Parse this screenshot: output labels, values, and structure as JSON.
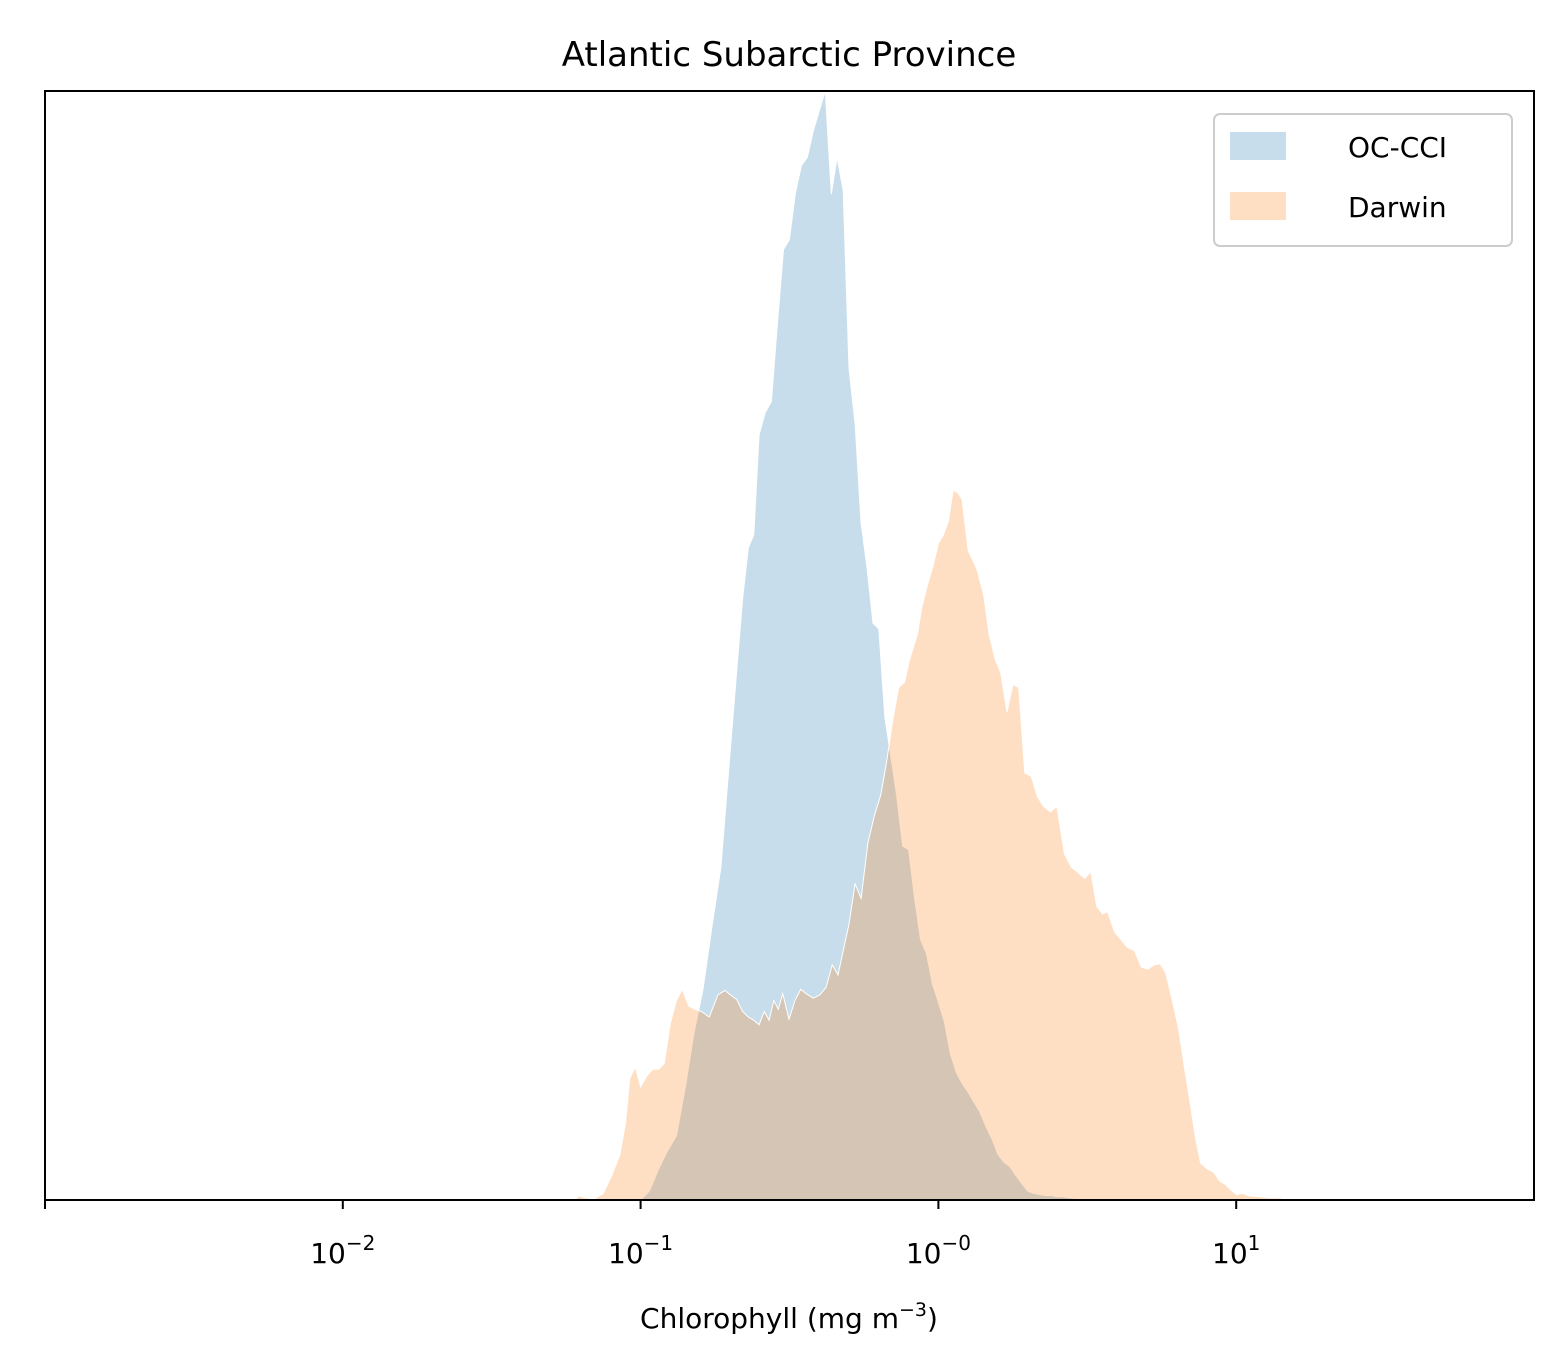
{
  "chart_data": {
    "type": "area",
    "title": "Atlantic Subarctic Province",
    "xlabel": {
      "main": "Chlorophyll  (mg m",
      "sup": "−3",
      "tail": ")"
    },
    "ylabel": "",
    "xscale": "log",
    "xlim": [
      0.001,
      100
    ],
    "ylim": [
      0,
      1.0
    ],
    "yticks_shown": false,
    "grid": false,
    "legend_position": "upper right",
    "x_ticks": [
      {
        "value": 0.01,
        "base": "10",
        "exp": "−2"
      },
      {
        "value": 0.1,
        "base": "10",
        "exp": "−1"
      },
      {
        "value": 1,
        "base": "10",
        "exp": "−0"
      },
      {
        "value": 10,
        "base": "10",
        "exp": "1"
      }
    ],
    "series": [
      {
        "name": "OC-CCI",
        "color": "#1f77b4",
        "alpha": 0.25,
        "points": [
          [
            0.1,
            0.0
          ],
          [
            0.107,
            0.008
          ],
          [
            0.115,
            0.028
          ],
          [
            0.123,
            0.044
          ],
          [
            0.132,
            0.058
          ],
          [
            0.141,
            0.1
          ],
          [
            0.151,
            0.15
          ],
          [
            0.162,
            0.19
          ],
          [
            0.174,
            0.248
          ],
          [
            0.186,
            0.3
          ],
          [
            0.2,
            0.405
          ],
          [
            0.209,
            0.468
          ],
          [
            0.22,
            0.542
          ],
          [
            0.23,
            0.588
          ],
          [
            0.24,
            0.6
          ],
          [
            0.25,
            0.69
          ],
          [
            0.262,
            0.71
          ],
          [
            0.275,
            0.72
          ],
          [
            0.288,
            0.79
          ],
          [
            0.302,
            0.857
          ],
          [
            0.316,
            0.866
          ],
          [
            0.331,
            0.908
          ],
          [
            0.347,
            0.933
          ],
          [
            0.363,
            0.94
          ],
          [
            0.38,
            0.964
          ],
          [
            0.398,
            0.982
          ],
          [
            0.417,
            1.0
          ],
          [
            0.437,
            0.907
          ],
          [
            0.457,
            0.94
          ],
          [
            0.479,
            0.91
          ],
          [
            0.501,
            0.75
          ],
          [
            0.525,
            0.7
          ],
          [
            0.55,
            0.61
          ],
          [
            0.575,
            0.572
          ],
          [
            0.603,
            0.52
          ],
          [
            0.631,
            0.515
          ],
          [
            0.661,
            0.435
          ],
          [
            0.692,
            0.4
          ],
          [
            0.724,
            0.365
          ],
          [
            0.759,
            0.319
          ],
          [
            0.794,
            0.316
          ],
          [
            0.832,
            0.272
          ],
          [
            0.871,
            0.235
          ],
          [
            0.912,
            0.222
          ],
          [
            0.955,
            0.195
          ],
          [
            1.0,
            0.178
          ],
          [
            1.047,
            0.161
          ],
          [
            1.096,
            0.132
          ],
          [
            1.148,
            0.115
          ],
          [
            1.202,
            0.105
          ],
          [
            1.259,
            0.097
          ],
          [
            1.318,
            0.088
          ],
          [
            1.38,
            0.079
          ],
          [
            1.445,
            0.066
          ],
          [
            1.514,
            0.055
          ],
          [
            1.585,
            0.041
          ],
          [
            1.66,
            0.034
          ],
          [
            1.738,
            0.03
          ],
          [
            1.82,
            0.022
          ],
          [
            1.905,
            0.015
          ],
          [
            1.995,
            0.008
          ],
          [
            2.089,
            0.006
          ],
          [
            2.188,
            0.005
          ],
          [
            2.291,
            0.004
          ],
          [
            2.399,
            0.004
          ],
          [
            2.512,
            0.003
          ],
          [
            2.63,
            0.003
          ],
          [
            2.754,
            0.002
          ],
          [
            3.0,
            0.001
          ],
          [
            3.5,
            0.0
          ]
        ]
      },
      {
        "name": "Darwin",
        "color": "#ff7f0e",
        "alpha": 0.25,
        "points": [
          [
            0.06,
            0.0
          ],
          [
            0.062,
            0.004
          ],
          [
            0.065,
            0.002
          ],
          [
            0.07,
            0.001
          ],
          [
            0.075,
            0.006
          ],
          [
            0.08,
            0.022
          ],
          [
            0.085,
            0.04
          ],
          [
            0.089,
            0.069
          ],
          [
            0.092,
            0.11
          ],
          [
            0.096,
            0.12
          ],
          [
            0.1,
            0.102
          ],
          [
            0.105,
            0.112
          ],
          [
            0.11,
            0.118
          ],
          [
            0.115,
            0.118
          ],
          [
            0.12,
            0.123
          ],
          [
            0.126,
            0.16
          ],
          [
            0.132,
            0.18
          ],
          [
            0.138,
            0.19
          ],
          [
            0.145,
            0.175
          ],
          [
            0.152,
            0.172
          ],
          [
            0.16,
            0.17
          ],
          [
            0.17,
            0.165
          ],
          [
            0.182,
            0.185
          ],
          [
            0.192,
            0.189
          ],
          [
            0.2,
            0.185
          ],
          [
            0.21,
            0.181
          ],
          [
            0.22,
            0.17
          ],
          [
            0.23,
            0.165
          ],
          [
            0.24,
            0.162
          ],
          [
            0.25,
            0.158
          ],
          [
            0.26,
            0.17
          ],
          [
            0.27,
            0.162
          ],
          [
            0.28,
            0.18
          ],
          [
            0.29,
            0.172
          ],
          [
            0.3,
            0.186
          ],
          [
            0.315,
            0.163
          ],
          [
            0.33,
            0.18
          ],
          [
            0.345,
            0.19
          ],
          [
            0.36,
            0.186
          ],
          [
            0.38,
            0.182
          ],
          [
            0.4,
            0.185
          ],
          [
            0.42,
            0.192
          ],
          [
            0.44,
            0.212
          ],
          [
            0.46,
            0.203
          ],
          [
            0.48,
            0.226
          ],
          [
            0.5,
            0.248
          ],
          [
            0.525,
            0.285
          ],
          [
            0.55,
            0.272
          ],
          [
            0.58,
            0.322
          ],
          [
            0.61,
            0.347
          ],
          [
            0.64,
            0.365
          ],
          [
            0.67,
            0.395
          ],
          [
            0.7,
            0.43
          ],
          [
            0.735,
            0.462
          ],
          [
            0.77,
            0.467
          ],
          [
            0.8,
            0.487
          ],
          [
            0.85,
            0.51
          ],
          [
            0.88,
            0.535
          ],
          [
            0.92,
            0.555
          ],
          [
            0.96,
            0.572
          ],
          [
            1.0,
            0.592
          ],
          [
            1.04,
            0.6
          ],
          [
            1.08,
            0.612
          ],
          [
            1.12,
            0.64
          ],
          [
            1.16,
            0.638
          ],
          [
            1.2,
            0.632
          ],
          [
            1.26,
            0.585
          ],
          [
            1.3,
            0.578
          ],
          [
            1.35,
            0.568
          ],
          [
            1.42,
            0.545
          ],
          [
            1.48,
            0.51
          ],
          [
            1.55,
            0.488
          ],
          [
            1.62,
            0.475
          ],
          [
            1.7,
            0.44
          ],
          [
            1.78,
            0.465
          ],
          [
            1.86,
            0.462
          ],
          [
            1.95,
            0.385
          ],
          [
            2.05,
            0.382
          ],
          [
            2.15,
            0.364
          ],
          [
            2.25,
            0.355
          ],
          [
            2.38,
            0.35
          ],
          [
            2.5,
            0.355
          ],
          [
            2.65,
            0.312
          ],
          [
            2.8,
            0.3
          ],
          [
            2.95,
            0.295
          ],
          [
            3.1,
            0.29
          ],
          [
            3.25,
            0.296
          ],
          [
            3.4,
            0.265
          ],
          [
            3.55,
            0.258
          ],
          [
            3.7,
            0.26
          ],
          [
            3.9,
            0.242
          ],
          [
            4.1,
            0.235
          ],
          [
            4.3,
            0.228
          ],
          [
            4.55,
            0.225
          ],
          [
            4.8,
            0.21
          ],
          [
            5.05,
            0.208
          ],
          [
            5.3,
            0.212
          ],
          [
            5.55,
            0.213
          ],
          [
            5.8,
            0.205
          ],
          [
            6.1,
            0.18
          ],
          [
            6.4,
            0.155
          ],
          [
            6.7,
            0.12
          ],
          [
            7.0,
            0.088
          ],
          [
            7.3,
            0.056
          ],
          [
            7.6,
            0.033
          ],
          [
            8.0,
            0.028
          ],
          [
            8.4,
            0.025
          ],
          [
            8.8,
            0.017
          ],
          [
            9.2,
            0.014
          ],
          [
            9.6,
            0.009
          ],
          [
            10.0,
            0.005
          ],
          [
            10.5,
            0.006
          ],
          [
            11.0,
            0.004
          ],
          [
            12.0,
            0.003
          ],
          [
            13.0,
            0.002
          ],
          [
            14.0,
            0.002
          ],
          [
            15.0,
            0.0
          ]
        ]
      }
    ]
  }
}
